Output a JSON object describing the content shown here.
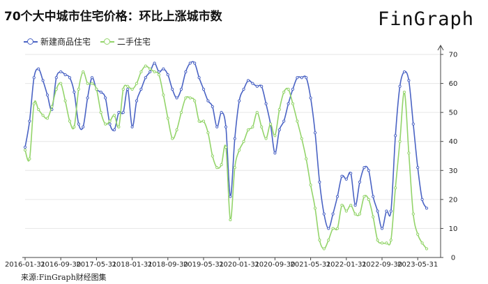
{
  "header": {
    "title": "70个大中城市住宅价格：环比上涨城市数",
    "brand": "FinGraph"
  },
  "footer": {
    "source": "来源:FinGraph财经图集"
  },
  "colors": {
    "series_new": "#4a63c4",
    "series_second": "#93d46a",
    "axis": "#444444",
    "grid": "#e6e6e6"
  },
  "chart_data": {
    "type": "line",
    "title": "70个大中城市住宅价格：环比上涨城市数",
    "xlabel": "",
    "ylabel": "",
    "ylim": [
      0,
      70
    ],
    "y_ticks": [
      0,
      10,
      20,
      30,
      40,
      50,
      60,
      70
    ],
    "y_axis_position": "right",
    "x_tick_labels": [
      "2016-01-31",
      "2016-09-30",
      "2017-05-31",
      "2018-01-31",
      "2018-09-30",
      "2019-05-31",
      "2020-01-31",
      "2020-09-30",
      "2021-05-31",
      "2022-01-31",
      "2022-09-30",
      "2023-05-31"
    ],
    "legend_position": "top-left",
    "grid": true,
    "x_start": "2016-01",
    "x_freq": "monthly",
    "series": [
      {
        "name": "新建商品住宅",
        "color": "#4a63c4",
        "values": [
          38,
          47,
          62,
          65,
          61,
          56,
          51,
          62,
          64,
          63,
          62,
          57,
          46,
          45,
          55,
          62,
          58,
          57,
          55,
          46,
          44,
          50,
          50,
          58,
          45,
          54,
          58,
          62,
          64,
          67,
          64,
          65,
          63,
          58,
          55,
          58,
          64,
          67,
          67,
          62,
          58,
          54,
          52,
          45,
          50,
          45,
          21,
          41,
          54,
          58,
          61,
          60,
          59,
          59,
          53,
          46,
          36,
          44,
          47,
          53,
          58,
          62,
          62,
          62,
          55,
          43,
          26,
          15,
          10,
          15,
          21,
          28,
          27,
          29,
          18,
          26,
          31,
          30,
          21,
          16,
          10,
          16,
          16,
          42,
          59,
          64,
          61,
          46,
          31,
          20,
          17
        ]
      },
      {
        "name": "二手住宅",
        "color": "#93d46a",
        "values": [
          37,
          34,
          53,
          51,
          49,
          48,
          52,
          58,
          60,
          54,
          47,
          45,
          58,
          64,
          60,
          60,
          58,
          50,
          46,
          47,
          49,
          45,
          58,
          59,
          58,
          60,
          64,
          66,
          65,
          64,
          63,
          56,
          48,
          41,
          44,
          50,
          55,
          55,
          54,
          47,
          47,
          43,
          35,
          31,
          32,
          38,
          13,
          31,
          37,
          40,
          44,
          45,
          50,
          45,
          41,
          46,
          42,
          51,
          57,
          58,
          53,
          47,
          41,
          34,
          25,
          17,
          6,
          3,
          6,
          10,
          10,
          18,
          16,
          18,
          15,
          15,
          21,
          20,
          14,
          6,
          5,
          5,
          6,
          24,
          40,
          57,
          36,
          15,
          8,
          5,
          3
        ]
      }
    ]
  }
}
